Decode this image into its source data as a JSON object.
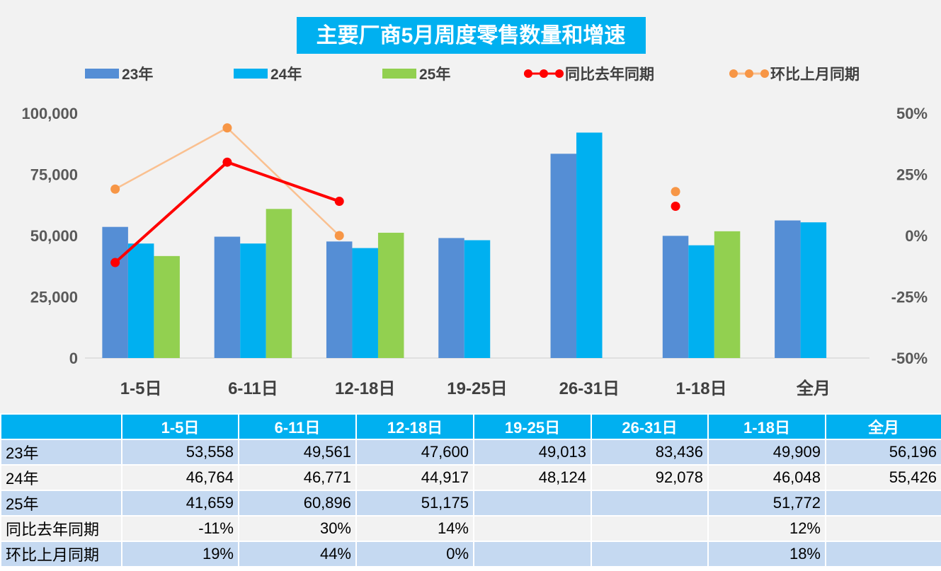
{
  "chart_data": {
    "type": "bar",
    "title": "主要厂商5月周度零售数量和增速",
    "categories": [
      "1-5日",
      "6-11日",
      "12-18日",
      "19-25日",
      "26-31日",
      "1-18日",
      "全月"
    ],
    "series": [
      {
        "name": "23年",
        "kind": "bar",
        "axis": "left",
        "color": "#558ed5",
        "values": [
          53558,
          49561,
          47600,
          49013,
          83436,
          49909,
          56196
        ]
      },
      {
        "name": "24年",
        "kind": "bar",
        "axis": "left",
        "color": "#00b0f0",
        "values": [
          46764,
          46771,
          44917,
          48124,
          92078,
          46048,
          55426
        ]
      },
      {
        "name": "25年",
        "kind": "bar",
        "axis": "left",
        "color": "#92d050",
        "values": [
          41659,
          60896,
          51175,
          null,
          null,
          51772,
          null
        ]
      },
      {
        "name": "同比去年同期",
        "kind": "line",
        "axis": "right",
        "color": "#ff0000",
        "values": [
          -11,
          30,
          14,
          null,
          null,
          12,
          null
        ]
      },
      {
        "name": "环比上月同期",
        "kind": "line",
        "axis": "right",
        "color": "#fac090",
        "values": [
          19,
          44,
          0,
          null,
          null,
          18,
          null
        ]
      }
    ],
    "y_left": {
      "ticks": [
        "0",
        "25,000",
        "50,000",
        "75,000",
        "100,000"
      ],
      "ylim": [
        0,
        100000
      ]
    },
    "y_right": {
      "ticks": [
        "-50%",
        "-25%",
        "0%",
        "25%",
        "50%"
      ],
      "ylim": [
        -50,
        50
      ],
      "unit": "%"
    },
    "legend_position": "top",
    "grid": false
  },
  "table": {
    "header": [
      "",
      "1-5日",
      "6-11日",
      "12-18日",
      "19-25日",
      "26-31日",
      "1-18日",
      "全月"
    ],
    "rows": [
      {
        "label": "23年",
        "values": [
          "53,558",
          "49,561",
          "47,600",
          "49,013",
          "83,436",
          "49,909",
          "56,196"
        ]
      },
      {
        "label": "24年",
        "values": [
          "46,764",
          "46,771",
          "44,917",
          "48,124",
          "92,078",
          "46,048",
          "55,426"
        ]
      },
      {
        "label": "25年",
        "values": [
          "41,659",
          "60,896",
          "51,175",
          "",
          "",
          "51,772",
          ""
        ]
      },
      {
        "label": "同比去年同期",
        "values": [
          "-11%",
          "30%",
          "14%",
          "",
          "",
          "12%",
          ""
        ]
      },
      {
        "label": "环比上月同期",
        "values": [
          "19%",
          "44%",
          "0%",
          "",
          "",
          "18%",
          ""
        ]
      }
    ]
  },
  "colors": {
    "title_bg": "#00b0f0",
    "plot_bg": "#f2f2f2",
    "table_header": "#00b0f0",
    "row_blue": "#c5d9f1",
    "row_gray": "#f2f2f2"
  }
}
